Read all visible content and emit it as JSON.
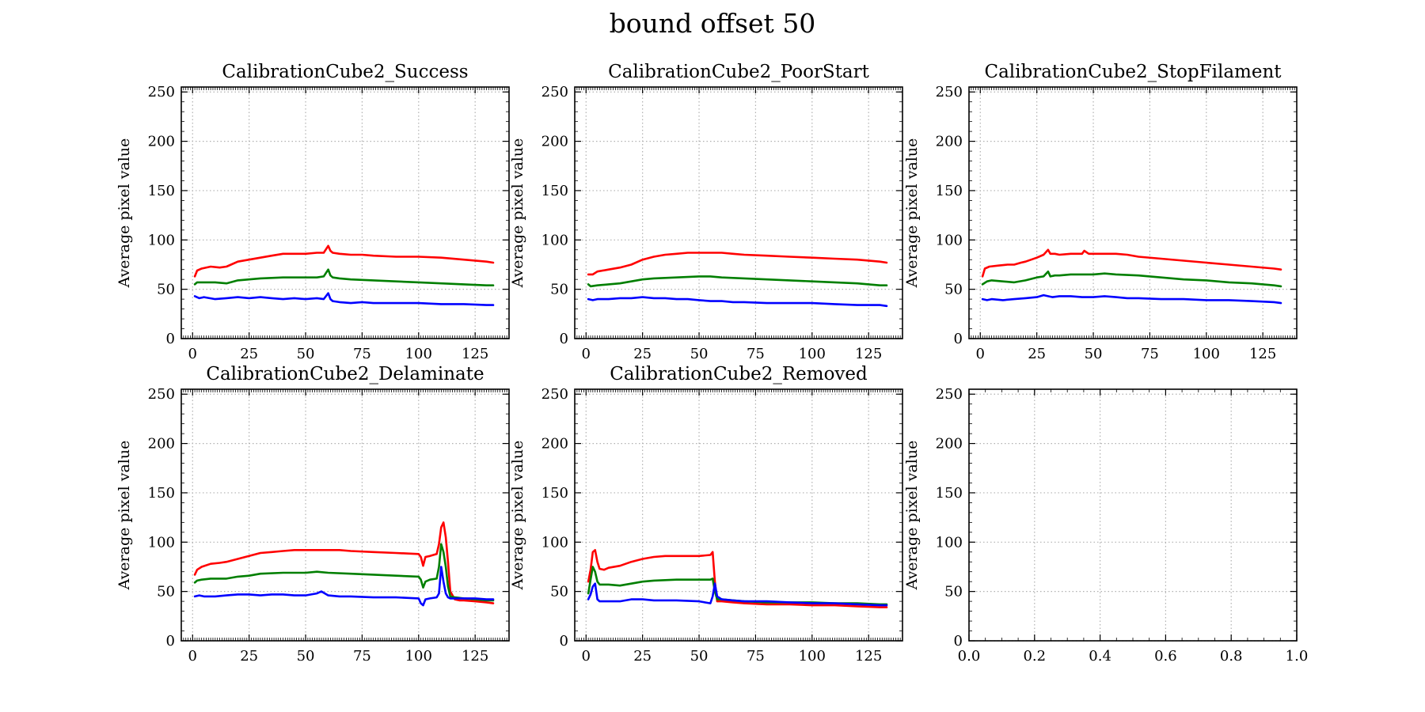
{
  "figure": {
    "title": "bound offset 50"
  },
  "colors": {
    "red": "#ff0000",
    "green": "#007f00",
    "blue": "#0000ff",
    "grid": "#b0b0b0"
  },
  "chart_data": [
    {
      "type": "line",
      "title": "CalibrationCube2_Success",
      "ylabel": "Average pixel value",
      "xlim": [
        -5,
        140
      ],
      "ylim": [
        0,
        255
      ],
      "xticks": [
        0,
        25,
        50,
        75,
        100,
        125
      ],
      "xtick_labels": [
        "0",
        "25",
        "50",
        "75",
        "100",
        "125"
      ],
      "yticks": [
        0,
        50,
        100,
        150,
        200,
        250
      ],
      "ytick_labels": [
        "0",
        "50",
        "100",
        "150",
        "200",
        "250"
      ],
      "grid": true,
      "series": [
        {
          "color": "red",
          "x": [
            1,
            2,
            4,
            8,
            12,
            15,
            17,
            20,
            25,
            30,
            35,
            40,
            45,
            50,
            55,
            58,
            60,
            61,
            62,
            65,
            70,
            75,
            80,
            90,
            100,
            110,
            120,
            130,
            133
          ],
          "y": [
            63,
            69,
            71,
            73,
            72,
            73,
            75,
            78,
            80,
            82,
            84,
            86,
            86,
            86,
            87,
            87,
            94,
            89,
            87,
            86,
            85,
            85,
            84,
            83,
            83,
            82,
            80,
            78,
            77
          ]
        },
        {
          "color": "green",
          "x": [
            1,
            2,
            5,
            10,
            15,
            20,
            25,
            30,
            40,
            50,
            55,
            58,
            60,
            61,
            62,
            65,
            70,
            80,
            90,
            100,
            110,
            120,
            130,
            133
          ],
          "y": [
            55,
            57,
            57,
            57,
            56,
            59,
            60,
            61,
            62,
            62,
            62,
            63,
            70,
            64,
            62,
            61,
            60,
            59,
            58,
            57,
            56,
            55,
            54,
            54
          ]
        },
        {
          "color": "blue",
          "x": [
            1,
            3,
            5,
            10,
            15,
            20,
            25,
            30,
            35,
            40,
            45,
            50,
            55,
            58,
            60,
            61,
            62,
            65,
            70,
            75,
            80,
            90,
            100,
            110,
            120,
            130,
            133
          ],
          "y": [
            43,
            41,
            42,
            40,
            41,
            42,
            41,
            42,
            41,
            40,
            41,
            40,
            41,
            40,
            46,
            40,
            38,
            37,
            36,
            37,
            36,
            36,
            36,
            35,
            35,
            34,
            34
          ]
        }
      ]
    },
    {
      "type": "line",
      "title": "CalibrationCube2_PoorStart",
      "ylabel": "Average pixel value",
      "xlim": [
        -5,
        140
      ],
      "ylim": [
        0,
        255
      ],
      "xticks": [
        0,
        25,
        50,
        75,
        100,
        125
      ],
      "xtick_labels": [
        "0",
        "25",
        "50",
        "75",
        "100",
        "125"
      ],
      "yticks": [
        0,
        50,
        100,
        150,
        200,
        250
      ],
      "ytick_labels": [
        "0",
        "50",
        "100",
        "150",
        "200",
        "250"
      ],
      "grid": true,
      "series": [
        {
          "color": "red",
          "x": [
            1,
            3,
            5,
            10,
            15,
            20,
            25,
            30,
            35,
            40,
            45,
            50,
            55,
            60,
            65,
            70,
            80,
            90,
            100,
            110,
            120,
            130,
            133
          ],
          "y": [
            65,
            65,
            68,
            70,
            72,
            75,
            80,
            83,
            85,
            86,
            87,
            87,
            87,
            87,
            86,
            85,
            84,
            83,
            82,
            81,
            80,
            78,
            77
          ]
        },
        {
          "color": "green",
          "x": [
            1,
            2,
            5,
            10,
            15,
            20,
            25,
            30,
            40,
            50,
            55,
            60,
            70,
            80,
            90,
            100,
            110,
            120,
            130,
            133
          ],
          "y": [
            55,
            53,
            54,
            55,
            56,
            58,
            60,
            61,
            62,
            63,
            63,
            62,
            61,
            60,
            59,
            58,
            57,
            56,
            54,
            54
          ]
        },
        {
          "color": "blue",
          "x": [
            1,
            3,
            5,
            10,
            15,
            20,
            25,
            30,
            35,
            40,
            45,
            50,
            55,
            60,
            65,
            70,
            80,
            90,
            100,
            110,
            120,
            130,
            133
          ],
          "y": [
            40,
            39,
            40,
            40,
            41,
            41,
            42,
            41,
            41,
            40,
            40,
            39,
            38,
            38,
            37,
            37,
            36,
            36,
            36,
            35,
            34,
            34,
            33
          ]
        }
      ]
    },
    {
      "type": "line",
      "title": "CalibrationCube2_StopFilament",
      "ylabel": "Average pixel value",
      "xlim": [
        -5,
        140
      ],
      "ylim": [
        0,
        255
      ],
      "xticks": [
        0,
        25,
        50,
        75,
        100,
        125
      ],
      "xtick_labels": [
        "0",
        "25",
        "50",
        "75",
        "100",
        "125"
      ],
      "yticks": [
        0,
        50,
        100,
        150,
        200,
        250
      ],
      "ytick_labels": [
        "0",
        "50",
        "100",
        "150",
        "200",
        "250"
      ],
      "grid": true,
      "series": [
        {
          "color": "red",
          "x": [
            1,
            2,
            4,
            8,
            12,
            15,
            18,
            20,
            25,
            28,
            30,
            31,
            33,
            35,
            40,
            45,
            46,
            48,
            50,
            55,
            60,
            65,
            70,
            80,
            90,
            100,
            110,
            120,
            130,
            133
          ],
          "y": [
            63,
            71,
            73,
            74,
            75,
            75,
            77,
            78,
            82,
            85,
            90,
            86,
            86,
            85,
            86,
            86,
            89,
            86,
            86,
            86,
            86,
            85,
            83,
            81,
            79,
            77,
            75,
            73,
            71,
            70
          ]
        },
        {
          "color": "green",
          "x": [
            1,
            3,
            5,
            10,
            15,
            20,
            25,
            28,
            30,
            31,
            33,
            35,
            40,
            45,
            50,
            55,
            60,
            70,
            80,
            90,
            100,
            110,
            120,
            130,
            133
          ],
          "y": [
            55,
            58,
            59,
            58,
            57,
            59,
            62,
            63,
            68,
            63,
            64,
            64,
            65,
            65,
            65,
            66,
            65,
            64,
            62,
            60,
            59,
            57,
            56,
            54,
            53
          ]
        },
        {
          "color": "blue",
          "x": [
            1,
            3,
            5,
            10,
            15,
            20,
            25,
            28,
            30,
            32,
            35,
            40,
            45,
            50,
            55,
            60,
            65,
            70,
            80,
            90,
            100,
            110,
            120,
            130,
            133
          ],
          "y": [
            40,
            39,
            40,
            39,
            40,
            41,
            42,
            44,
            43,
            42,
            43,
            43,
            42,
            42,
            43,
            42,
            41,
            41,
            40,
            40,
            39,
            39,
            38,
            37,
            36
          ]
        }
      ]
    },
    {
      "type": "line",
      "title": "CalibrationCube2_Delaminate",
      "ylabel": "Average pixel value",
      "xlim": [
        -5,
        140
      ],
      "ylim": [
        0,
        255
      ],
      "xticks": [
        0,
        25,
        50,
        75,
        100,
        125
      ],
      "xtick_labels": [
        "0",
        "25",
        "50",
        "75",
        "100",
        "125"
      ],
      "yticks": [
        0,
        50,
        100,
        150,
        200,
        250
      ],
      "ytick_labels": [
        "0",
        "50",
        "100",
        "150",
        "200",
        "250"
      ],
      "grid": true,
      "series": [
        {
          "color": "red",
          "x": [
            1,
            2,
            4,
            8,
            12,
            15,
            20,
            25,
            30,
            35,
            40,
            45,
            50,
            55,
            60,
            65,
            70,
            80,
            90,
            100,
            101,
            102,
            103,
            105,
            108,
            109,
            110,
            111,
            112,
            113,
            114,
            116,
            118,
            120,
            125,
            130,
            133
          ],
          "y": [
            67,
            72,
            75,
            78,
            79,
            80,
            83,
            86,
            89,
            90,
            91,
            92,
            92,
            92,
            92,
            92,
            91,
            90,
            89,
            88,
            85,
            76,
            85,
            86,
            88,
            98,
            115,
            120,
            105,
            80,
            50,
            42,
            41,
            41,
            40,
            39,
            38
          ]
        },
        {
          "color": "green",
          "x": [
            1,
            2,
            4,
            8,
            15,
            20,
            25,
            30,
            40,
            50,
            55,
            60,
            70,
            80,
            90,
            100,
            101,
            102,
            103,
            105,
            108,
            109,
            110,
            111,
            112,
            113,
            114,
            116,
            120,
            125,
            130,
            133
          ],
          "y": [
            59,
            61,
            62,
            63,
            63,
            65,
            66,
            68,
            69,
            69,
            70,
            69,
            68,
            67,
            66,
            65,
            62,
            54,
            60,
            62,
            63,
            75,
            98,
            90,
            75,
            55,
            45,
            44,
            43,
            42,
            41,
            41
          ]
        },
        {
          "color": "blue",
          "x": [
            1,
            3,
            5,
            10,
            15,
            20,
            25,
            30,
            35,
            40,
            45,
            50,
            55,
            57,
            60,
            65,
            70,
            80,
            90,
            100,
            101,
            102,
            103,
            105,
            108,
            109,
            110,
            111,
            112,
            113,
            114,
            116,
            120,
            125,
            130,
            133
          ],
          "y": [
            45,
            46,
            45,
            45,
            46,
            47,
            47,
            46,
            47,
            47,
            46,
            46,
            48,
            50,
            46,
            45,
            45,
            44,
            44,
            43,
            38,
            36,
            42,
            43,
            44,
            48,
            75,
            60,
            48,
            44,
            43,
            43,
            43,
            43,
            42,
            42
          ]
        }
      ]
    },
    {
      "type": "line",
      "title": "CalibrationCube2_Removed",
      "ylabel": "Average pixel value",
      "xlim": [
        -5,
        140
      ],
      "ylim": [
        0,
        255
      ],
      "xticks": [
        0,
        25,
        50,
        75,
        100,
        125
      ],
      "xtick_labels": [
        "0",
        "25",
        "50",
        "75",
        "100",
        "125"
      ],
      "yticks": [
        0,
        50,
        100,
        150,
        200,
        250
      ],
      "ytick_labels": [
        "0",
        "50",
        "100",
        "150",
        "200",
        "250"
      ],
      "grid": true,
      "series": [
        {
          "color": "red",
          "x": [
            1,
            2,
            3,
            4,
            5,
            6,
            8,
            10,
            15,
            20,
            25,
            30,
            35,
            40,
            45,
            50,
            55,
            56,
            57,
            58,
            60,
            65,
            70,
            80,
            90,
            100,
            110,
            120,
            130,
            133
          ],
          "y": [
            60,
            72,
            90,
            92,
            80,
            73,
            72,
            74,
            76,
            80,
            83,
            85,
            86,
            86,
            86,
            86,
            87,
            90,
            60,
            40,
            40,
            39,
            38,
            37,
            37,
            36,
            36,
            35,
            34,
            34
          ]
        },
        {
          "color": "green",
          "x": [
            1,
            2,
            3,
            4,
            5,
            6,
            10,
            15,
            20,
            25,
            30,
            40,
            50,
            55,
            56,
            57,
            58,
            60,
            65,
            70,
            80,
            90,
            100,
            110,
            120,
            130,
            133
          ],
          "y": [
            48,
            62,
            75,
            70,
            60,
            57,
            57,
            56,
            58,
            60,
            61,
            62,
            62,
            62,
            63,
            50,
            42,
            42,
            41,
            40,
            39,
            39,
            39,
            38,
            38,
            37,
            37
          ]
        },
        {
          "color": "blue",
          "x": [
            1,
            2,
            3,
            4,
            5,
            6,
            10,
            15,
            20,
            25,
            30,
            40,
            50,
            55,
            56,
            57,
            58,
            60,
            65,
            70,
            80,
            90,
            100,
            110,
            120,
            130,
            133
          ],
          "y": [
            42,
            47,
            55,
            58,
            42,
            40,
            40,
            40,
            42,
            42,
            41,
            41,
            40,
            38,
            45,
            58,
            45,
            42,
            41,
            40,
            40,
            39,
            38,
            38,
            37,
            36,
            36
          ]
        }
      ]
    },
    {
      "type": "line",
      "title": "",
      "ylabel": "Average pixel value",
      "xlim": [
        0,
        1
      ],
      "ylim": [
        0,
        255
      ],
      "xticks": [
        0,
        0.2,
        0.4,
        0.6,
        0.8,
        1.0
      ],
      "xtick_labels": [
        "0.0",
        "0.2",
        "0.4",
        "0.6",
        "0.8",
        "1.0"
      ],
      "yticks": [
        0,
        50,
        100,
        150,
        200,
        250
      ],
      "ytick_labels": [
        "0",
        "50",
        "100",
        "150",
        "200",
        "250"
      ],
      "grid": true,
      "series": []
    }
  ]
}
